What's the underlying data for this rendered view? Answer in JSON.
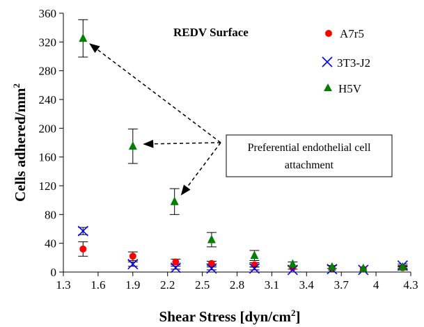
{
  "chart_data": {
    "type": "scatter",
    "title": "REDV Surface",
    "xlabel": "Shear Stress [dyn/cm",
    "xlabel_sup": "2",
    "xlabel_end": "]",
    "ylabel": "Cells adhered/mm",
    "ylabel_sup": "2",
    "xlim": [
      1.3,
      4.3
    ],
    "ylim": [
      0,
      360
    ],
    "xticks": [
      "1.3",
      "1.6",
      "1.9",
      "2.2",
      "2.5",
      "2.8",
      "3.1",
      "3.4",
      "3.7",
      "4",
      "4.3"
    ],
    "yticks": [
      "0",
      "40",
      "80",
      "120",
      "160",
      "200",
      "240",
      "280",
      "320",
      "360"
    ],
    "grid": false,
    "legend_position": "top-right",
    "annotation": {
      "lines": [
        "Preferential endothelial cell",
        "attachment"
      ],
      "arrow_targets": [
        [
          1.47,
          325
        ],
        [
          1.9,
          178
        ],
        [
          2.26,
          98
        ]
      ]
    },
    "series": [
      {
        "name": "A7r5",
        "marker": "circle",
        "color": "#ff0000",
        "x": [
          1.47,
          1.9,
          2.27,
          2.58,
          2.95,
          3.28,
          3.62,
          3.89,
          4.23
        ],
        "y": [
          32,
          22,
          14,
          12,
          10,
          6,
          5,
          4,
          6
        ],
        "err": [
          10,
          6,
          4,
          3,
          3,
          2,
          1,
          1,
          2
        ]
      },
      {
        "name": "3T3-J2",
        "marker": "x",
        "color": "#0000ff",
        "x": [
          1.47,
          1.9,
          2.27,
          2.58,
          2.95,
          3.28,
          3.62,
          3.89,
          4.23
        ],
        "y": [
          57,
          11,
          6,
          5,
          5,
          3,
          4,
          3,
          9
        ],
        "err": [
          5,
          3,
          2,
          2,
          2,
          1,
          1,
          1,
          2
        ]
      },
      {
        "name": "H5V",
        "marker": "triangle",
        "color": "#008000",
        "x": [
          1.47,
          1.9,
          2.26,
          2.58,
          2.95,
          3.28,
          3.62,
          3.89,
          4.23
        ],
        "y": [
          325,
          175,
          98,
          45,
          23,
          11,
          7,
          5,
          7
        ],
        "err": [
          26,
          24,
          18,
          10,
          7,
          3,
          2,
          1,
          2
        ]
      }
    ]
  }
}
